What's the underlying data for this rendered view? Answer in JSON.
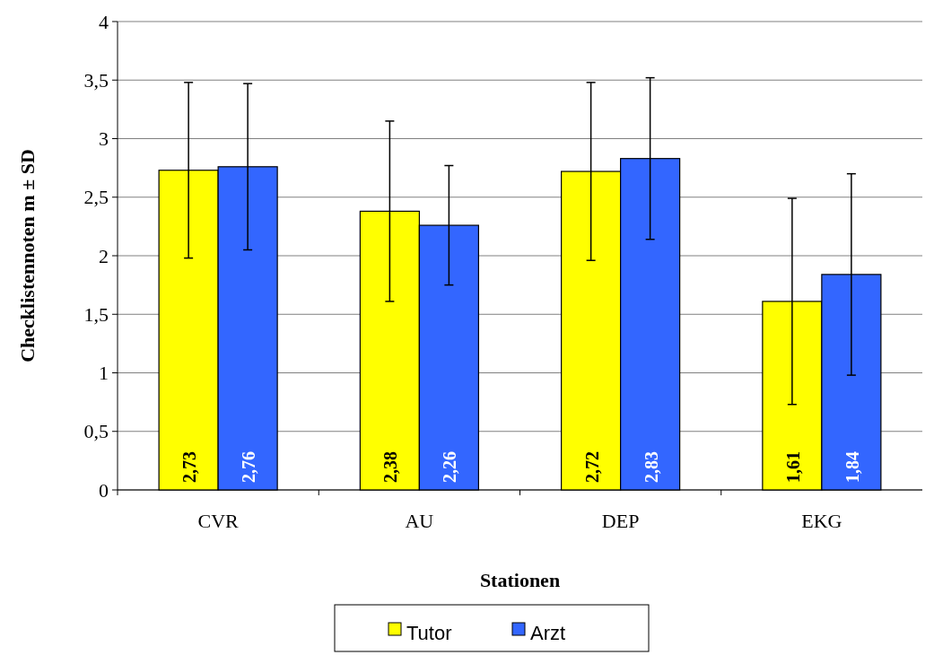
{
  "chart_data": {
    "type": "bar",
    "xlabel": "Stationen",
    "ylabel": "Checklistennoten m ± SD",
    "categories": [
      "CVR",
      "AU",
      "DEP",
      "EKG"
    ],
    "series": [
      {
        "name": "Tutor",
        "color": "#ffff00",
        "values": [
          2.73,
          2.38,
          2.72,
          1.61
        ],
        "errors": [
          [
            1.98,
            3.48
          ],
          [
            1.61,
            3.15
          ],
          [
            1.96,
            3.48
          ],
          [
            0.73,
            2.49
          ]
        ],
        "value_labels": [
          "2,73",
          "2,38",
          "2,72",
          "1,61"
        ]
      },
      {
        "name": "Arzt",
        "color": "#3366ff",
        "values": [
          2.76,
          2.26,
          2.83,
          1.84
        ],
        "errors": [
          [
            2.05,
            3.47
          ],
          [
            1.75,
            2.77
          ],
          [
            2.14,
            3.52
          ],
          [
            0.98,
            2.7
          ]
        ],
        "value_labels": [
          "2,76",
          "2,26",
          "2,83",
          "1,84"
        ]
      }
    ],
    "ylim": [
      0,
      4
    ],
    "yticks": [
      0,
      {
        "value": 0.5,
        "label": "0,5"
      },
      1,
      {
        "value": 1.5,
        "label": "1,5"
      },
      2,
      {
        "value": 2.5,
        "label": "2,5"
      },
      3,
      {
        "value": 3.5,
        "label": "3,5"
      },
      4
    ],
    "grid": "y",
    "legend": "bottom"
  }
}
